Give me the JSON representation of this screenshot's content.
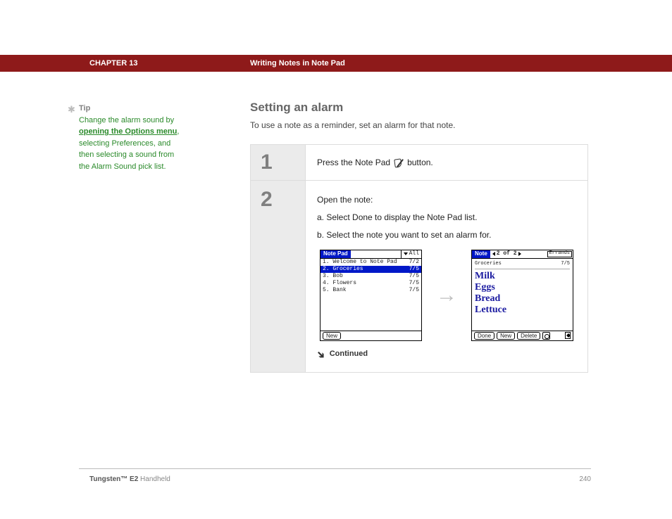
{
  "header": {
    "chapter": "CHAPTER 13",
    "section": "Writing Notes in Note Pad"
  },
  "tip": {
    "label": "Tip",
    "pre": "Change the alarm sound by ",
    "link": "opening the Options menu",
    "post": ", selecting Preferences, and then selecting a sound from the Alarm Sound pick list."
  },
  "main": {
    "title": "Setting an alarm",
    "subtitle": "To use a note as a reminder, set an alarm for that note."
  },
  "step1": {
    "num": "1",
    "text_pre": "Press the Note Pad",
    "text_post": "button."
  },
  "step2": {
    "num": "2",
    "intro": "Open the note:",
    "a": "a.  Select Done to display the Note Pad list.",
    "b": "b.  Select the note you want to set an alarm for.",
    "continued": "Continued"
  },
  "screen_left": {
    "app_title": "Note Pad",
    "category": "All",
    "rows": [
      {
        "name": "1. Welcome to Note Pad",
        "date": "7/2",
        "sel": false
      },
      {
        "name": "2. Groceries",
        "date": "7/5",
        "sel": true
      },
      {
        "name": "3. Bob",
        "date": "7/5",
        "sel": false
      },
      {
        "name": "4. Flowers",
        "date": "7/5",
        "sel": false
      },
      {
        "name": "5. Bank",
        "date": "7/5",
        "sel": false
      }
    ],
    "footer_new": "New"
  },
  "screen_right": {
    "app_title": "Note",
    "nav_text": "2 of 2",
    "category": "Errands",
    "meta_name": "Groceries",
    "meta_date": "7/5",
    "hand_lines": [
      "Milk",
      "Eggs",
      "Bread",
      "Lettuce"
    ],
    "btn_done": "Done",
    "btn_new": "New",
    "btn_delete": "Delete"
  },
  "footer": {
    "product_bold": "Tungsten™ E2",
    "product_rest": " Handheld",
    "page_num": "240"
  }
}
